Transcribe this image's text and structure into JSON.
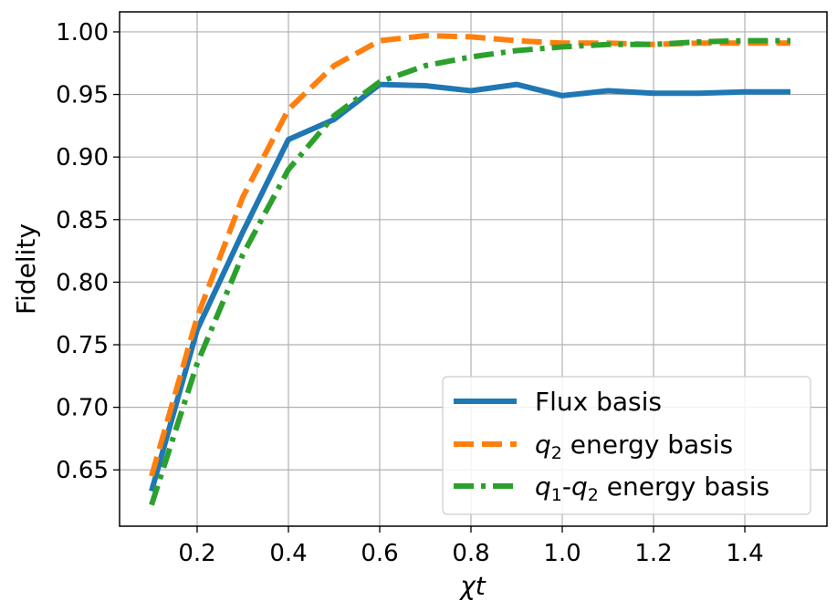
{
  "chart_data": {
    "type": "line",
    "xlabel": "χt",
    "ylabel": "Fidelity",
    "xlim": [
      0.03,
      1.58
    ],
    "ylim": [
      0.605,
      1.016
    ],
    "x_ticks": [
      "0.2",
      "0.4",
      "0.6",
      "0.8",
      "1.0",
      "1.2",
      "1.4"
    ],
    "y_ticks": [
      "0.65",
      "0.70",
      "0.75",
      "0.80",
      "0.85",
      "0.90",
      "0.95",
      "1.00"
    ],
    "grid": true,
    "legend_position": "lower-right",
    "x": [
      0.1,
      0.2,
      0.3,
      0.4,
      0.5,
      0.6,
      0.7,
      0.8,
      0.9,
      1.0,
      1.1,
      1.2,
      1.3,
      1.4,
      1.5
    ],
    "series": [
      {
        "name": "Flux basis",
        "legend_parts": [
          "Flux basis"
        ],
        "color": "#1f77b4",
        "style": "solid",
        "values": [
          0.633,
          0.762,
          0.84,
          0.914,
          0.93,
          0.958,
          0.957,
          0.953,
          0.958,
          0.949,
          0.953,
          0.951,
          0.951,
          0.952,
          0.952
        ]
      },
      {
        "name": "q2 energy basis",
        "legend_parts": [
          "q",
          "2",
          " energy basis"
        ],
        "color": "#ff7f0e",
        "style": "dashed",
        "values": [
          0.645,
          0.772,
          0.868,
          0.938,
          0.973,
          0.993,
          0.997,
          0.996,
          0.993,
          0.991,
          0.991,
          0.99,
          0.991,
          0.991,
          0.991
        ]
      },
      {
        "name": "q1-q2 energy basis",
        "legend_parts": [
          "q",
          "1",
          "-",
          "q",
          "2",
          " energy basis"
        ],
        "color": "#2ca02c",
        "style": "dashdot",
        "values": [
          0.622,
          0.735,
          0.822,
          0.89,
          0.933,
          0.96,
          0.973,
          0.98,
          0.985,
          0.988,
          0.99,
          0.99,
          0.992,
          0.993,
          0.993
        ]
      }
    ]
  }
}
